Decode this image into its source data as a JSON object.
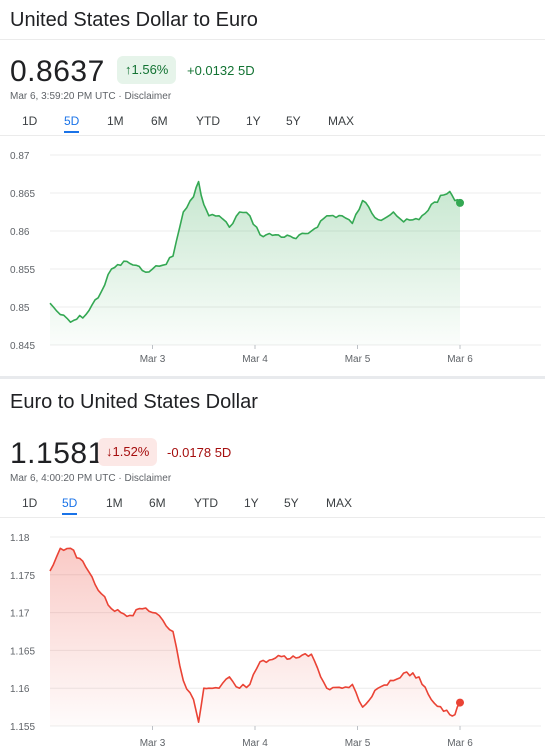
{
  "tabs": [
    "1D",
    "5D",
    "1M",
    "6M",
    "YTD",
    "1Y",
    "5Y",
    "MAX"
  ],
  "usd_eur": {
    "title": "United States Dollar to Euro",
    "price": "0.8637",
    "badge": "↑1.56%",
    "change": "+0.0132 5D",
    "timestamp": "Mar 6, 3:59:20 PM UTC · Disclaimer",
    "active_tab": "5D",
    "line_color": "#34a853",
    "chart_data": {
      "type": "area",
      "ylim": [
        0.845,
        0.87
      ],
      "y_ticks": [
        "0.87",
        "0.865",
        "0.86",
        "0.855",
        "0.85",
        "0.845"
      ],
      "x_ticks": [
        "Mar 3",
        "Mar 4",
        "Mar 5",
        "Mar 6"
      ],
      "x": [
        0,
        0.1,
        0.2,
        0.35,
        0.5,
        0.6,
        0.75,
        0.9,
        1.0,
        1.1,
        1.2,
        1.3,
        1.4,
        1.45,
        1.5,
        1.55,
        1.65,
        1.75,
        1.85,
        1.95,
        2.05,
        2.2,
        2.4,
        2.55,
        2.7,
        2.85,
        2.95,
        3.05,
        3.2,
        3.35,
        3.45,
        3.6,
        3.75,
        3.9,
        3.95,
        4.0
      ],
      "values": [
        0.8505,
        0.849,
        0.848,
        0.849,
        0.852,
        0.855,
        0.856,
        0.8548,
        0.855,
        0.8555,
        0.8567,
        0.8625,
        0.8645,
        0.8665,
        0.8635,
        0.862,
        0.862,
        0.8605,
        0.8625,
        0.862,
        0.8595,
        0.8595,
        0.859,
        0.86,
        0.862,
        0.862,
        0.861,
        0.864,
        0.8615,
        0.8625,
        0.8612,
        0.8615,
        0.8638,
        0.8652,
        0.864,
        0.8637
      ]
    }
  },
  "eur_usd": {
    "title": "Euro to United States Dollar",
    "price": "1.1581",
    "badge": "↓1.52%",
    "change": "-0.0178 5D",
    "timestamp": "Mar 6, 4:00:20 PM UTC · Disclaimer",
    "active_tab": "5D",
    "line_color": "#ea4335",
    "chart_data": {
      "type": "area",
      "ylim": [
        1.155,
        1.18
      ],
      "y_ticks": [
        "1.18",
        "1.175",
        "1.17",
        "1.165",
        "1.16",
        "1.155"
      ],
      "x_ticks": [
        "Mar 3",
        "Mar 4",
        "Mar 5",
        "Mar 6"
      ],
      "x": [
        0,
        0.1,
        0.2,
        0.35,
        0.5,
        0.6,
        0.75,
        0.9,
        1.0,
        1.1,
        1.2,
        1.3,
        1.4,
        1.45,
        1.5,
        1.55,
        1.65,
        1.75,
        1.85,
        1.95,
        2.05,
        2.2,
        2.4,
        2.55,
        2.7,
        2.85,
        2.95,
        3.05,
        3.2,
        3.35,
        3.45,
        3.6,
        3.75,
        3.9,
        3.95,
        4.0
      ],
      "values": [
        1.1755,
        1.1785,
        1.1785,
        1.176,
        1.1725,
        1.1705,
        1.1695,
        1.1705,
        1.17,
        1.169,
        1.1675,
        1.161,
        1.1585,
        1.1555,
        1.16,
        1.16,
        1.16,
        1.1615,
        1.16,
        1.1605,
        1.1635,
        1.164,
        1.164,
        1.1645,
        1.16,
        1.16,
        1.1605,
        1.1575,
        1.16,
        1.161,
        1.162,
        1.1615,
        1.158,
        1.1565,
        1.1565,
        1.1581
      ]
    }
  }
}
